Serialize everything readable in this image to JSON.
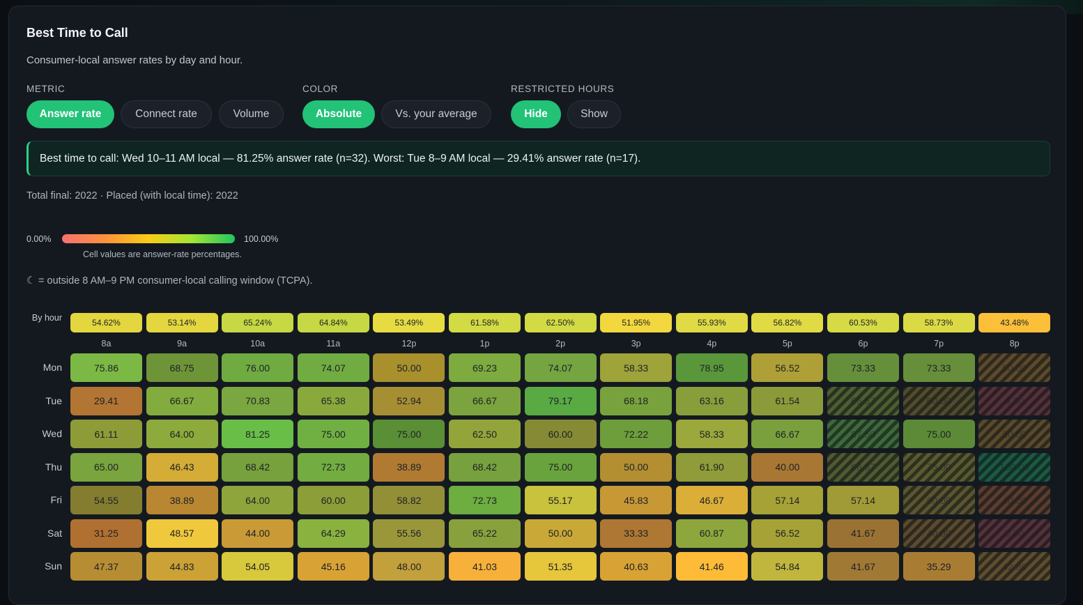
{
  "panel": {
    "title": "Best Time to Call",
    "subtitle": "Consumer-local answer rates by day and hour."
  },
  "controls": {
    "metric": {
      "label": "METRIC",
      "options": [
        "Answer rate",
        "Connect rate",
        "Volume"
      ],
      "selected": "Answer rate"
    },
    "color": {
      "label": "COLOR",
      "options": [
        "Absolute",
        "Vs. your average"
      ],
      "selected": "Absolute"
    },
    "restricted": {
      "label": "RESTRICTED HOURS",
      "options": [
        "Hide",
        "Show"
      ],
      "selected": "Hide"
    }
  },
  "insight": "Best time to call: Wed 10–11 AM local — 81.25% answer rate (n=32). Worst: Tue 8–9 AM local — 29.41% answer rate (n=17).",
  "totals": "Total final: 2022 · Placed (with local time): 2022",
  "legend": {
    "min": "0.00%",
    "max": "100.00%",
    "note": "Cell values are answer-rate percentages."
  },
  "tcpa_note": "☾ = outside 8 AM–9 PM consumer-local calling window (TCPA).",
  "colors": {
    "accent": "#22c277",
    "insight_border": "#2bd08a",
    "panel_bg": "#141920",
    "page_bg": "#0b0f14"
  },
  "chart_data": {
    "type": "heatmap",
    "by_hour_label": "By hour",
    "hours": [
      "8a",
      "9a",
      "10a",
      "11a",
      "12p",
      "1p",
      "2p",
      "3p",
      "4p",
      "5p",
      "6p",
      "7p",
      "8p"
    ],
    "by_hour": [
      "54.62%",
      "53.14%",
      "65.24%",
      "64.84%",
      "53.49%",
      "61.58%",
      "62.50%",
      "51.95%",
      "55.93%",
      "56.82%",
      "60.53%",
      "58.73%",
      "43.48%"
    ],
    "days": [
      "Mon",
      "Tue",
      "Wed",
      "Thu",
      "Fri",
      "Sat",
      "Sun"
    ],
    "values": [
      [
        "75.86",
        "68.75",
        "76.00",
        "74.07",
        "50.00",
        "69.23",
        "74.07",
        "58.33",
        "78.95",
        "56.52",
        "73.33",
        "73.33",
        "50.00"
      ],
      [
        "29.41",
        "66.67",
        "70.83",
        "65.38",
        "52.94",
        "66.67",
        "79.17",
        "68.18",
        "63.16",
        "61.54",
        "66.67",
        "60.00",
        "0.00"
      ],
      [
        "61.11",
        "64.00",
        "81.25",
        "75.00",
        "75.00",
        "62.50",
        "60.00",
        "72.22",
        "58.33",
        "66.67",
        "87.50",
        "75.00",
        "50.00"
      ],
      [
        "65.00",
        "46.43",
        "68.42",
        "72.73",
        "38.89",
        "68.42",
        "75.00",
        "50.00",
        "61.90",
        "40.00",
        "66.67",
        "75.00",
        "100.00"
      ],
      [
        "54.55",
        "38.89",
        "64.00",
        "60.00",
        "58.82",
        "72.73",
        "55.17",
        "45.83",
        "46.67",
        "57.14",
        "57.14",
        "60.00",
        "40.00"
      ],
      [
        "31.25",
        "48.57",
        "44.00",
        "64.29",
        "55.56",
        "65.22",
        "50.00",
        "33.33",
        "60.87",
        "56.52",
        "41.67",
        "40.00",
        "0.00"
      ],
      [
        "47.37",
        "44.83",
        "54.05",
        "45.16",
        "48.00",
        "41.03",
        "51.35",
        "40.63",
        "41.46",
        "54.84",
        "41.67",
        "35.29",
        "42.86"
      ]
    ],
    "restricted_cells": [
      [
        0,
        12
      ],
      [
        1,
        10
      ],
      [
        1,
        11
      ],
      [
        1,
        12
      ],
      [
        2,
        10
      ],
      [
        2,
        12
      ],
      [
        3,
        10
      ],
      [
        3,
        11
      ],
      [
        3,
        12
      ],
      [
        4,
        11
      ],
      [
        4,
        12
      ],
      [
        5,
        11
      ],
      [
        5,
        12
      ],
      [
        6,
        12
      ]
    ],
    "cell_colors": [
      [
        "#7cb944",
        "#6e9438",
        "#6fab41",
        "#71ac42",
        "#a8902d",
        "#7dab3f",
        "#74a540",
        "#9ea33a",
        "#5a973a",
        "#aea036",
        "#668f3b",
        "#678e3a",
        "#5c4a2b"
      ],
      [
        "#b27533",
        "#82ac3e",
        "#7aa73f",
        "#8aa93d",
        "#a68f33",
        "#7ba43e",
        "#5aaa44",
        "#78a33c",
        "#879e3a",
        "#8c9b3a",
        "#4e5e30",
        "#514c2c",
        "#55313a"
      ],
      [
        "#8d9c36",
        "#8daa3c",
        "#69be47",
        "#70b042",
        "#5a8f36",
        "#93a43a",
        "#868a35",
        "#6e9e3b",
        "#9aa83c",
        "#79a03d",
        "#3e6a3b",
        "#5c8a37",
        "#5a4a2c"
      ],
      [
        "#7aa43d",
        "#d4ac36",
        "#76a13d",
        "#73ac40",
        "#b17a33",
        "#77a13f",
        "#69a33d",
        "#b38f32",
        "#8f9c39",
        "#a97734",
        "#4f5a31",
        "#5a5a2f",
        "#1b5a42"
      ],
      [
        "#847d30",
        "#b98731",
        "#8da53b",
        "#8c9e38",
        "#928f37",
        "#6ead40",
        "#c8c23c",
        "#c79834",
        "#dbae37",
        "#a6a236",
        "#a09a37",
        "#5b5530",
        "#5a3d2e"
      ],
      [
        "#b07031",
        "#f0c83b",
        "#c99a36",
        "#8ab23f",
        "#9a973b",
        "#88a13c",
        "#caa838",
        "#ae7733",
        "#8ea73d",
        "#a6a236",
        "#9a7233",
        "#5b4a2e",
        "#55323b"
      ],
      [
        "#b78d33",
        "#cca136",
        "#d8c83c",
        "#d8a234",
        "#c2a03b",
        "#f7b13a",
        "#e6c63b",
        "#d9a235",
        "#fdbb38",
        "#c0b63d",
        "#a07a34",
        "#a97c34",
        "#5e4d2e"
      ]
    ],
    "by_hour_colors": [
      "#e3d63e",
      "#e3d63e",
      "#c6d843",
      "#c6d843",
      "#e6dc42",
      "#d2da44",
      "#d2da44",
      "#f2d73e",
      "#e0da44",
      "#e0da44",
      "#d6da44",
      "#dcda44",
      "#fcbf3a"
    ]
  }
}
